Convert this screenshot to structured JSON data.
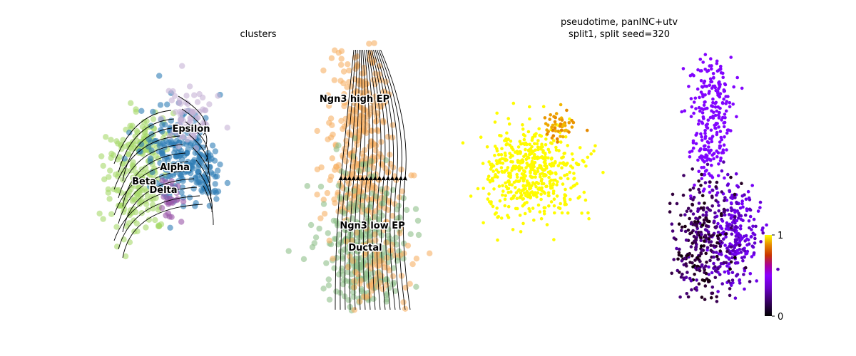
{
  "figure": {
    "left_title": "clusters",
    "right_title_line1": "pseudotime, panINC+utv",
    "right_title_line2": "split1, split seed=320"
  },
  "chart_data": [
    {
      "type": "scatter",
      "title": "clusters",
      "overlay": "velocity-streamlines",
      "color_by": "clusters",
      "legend": "on data",
      "clusters": [
        {
          "name": "Epsilon",
          "color": "#c7b2d6"
        },
        {
          "name": "Alpha",
          "color": "#2f7db5"
        },
        {
          "name": "Beta",
          "color": "#a6d96a"
        },
        {
          "name": "Delta",
          "color": "#9a56a8"
        },
        {
          "name": "Ngn3 high EP",
          "color": "#f6b066"
        },
        {
          "name": "Ngn3 low EP",
          "color": "#f6b066"
        },
        {
          "name": "Ductal",
          "color": "#8fc08a"
        }
      ]
    },
    {
      "type": "scatter",
      "title": "pseudotime, panINC+utv\nsplit1, split seed=320",
      "color_by": "pseudotime",
      "colormap": "gnuplot",
      "colorbar": {
        "min": 0,
        "max": 1,
        "ticks": [
          "0",
          "1"
        ]
      }
    }
  ]
}
